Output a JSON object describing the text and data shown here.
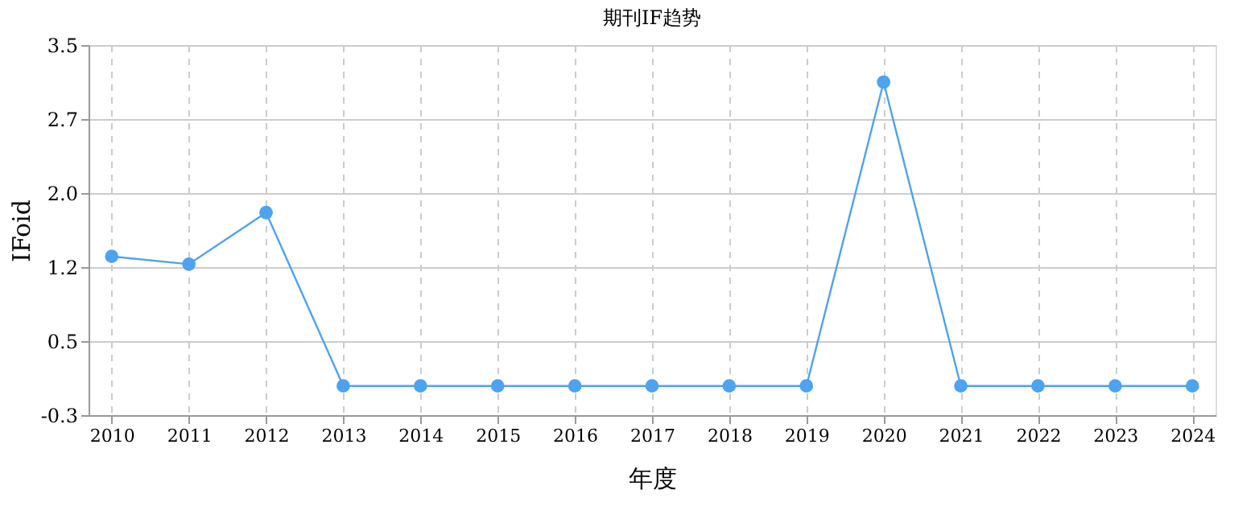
{
  "chart_data": {
    "type": "line",
    "title": "期刊IF趋势",
    "xlabel": "年度",
    "ylabel": "IFoid",
    "categories": [
      "2010",
      "2011",
      "2012",
      "2013",
      "2014",
      "2015",
      "2016",
      "2017",
      "2018",
      "2019",
      "2020",
      "2021",
      "2022",
      "2023",
      "2024"
    ],
    "series": [
      {
        "color": "#4da3f0",
        "values": [
          1.33,
          1.25,
          1.78,
          0,
          0,
          0,
          0,
          0,
          0,
          0,
          3.12,
          0,
          0,
          0,
          0
        ]
      }
    ],
    "ylim": [
      -0.3,
      3.5
    ],
    "yticks": [
      -0.3,
      {
        "value": 0.46,
        "label": "0.5"
      },
      {
        "value": 1.22,
        "label": "1.2"
      },
      {
        "value": 1.98,
        "label": "2.0"
      },
      {
        "value": 2.74,
        "label": "2.7"
      },
      3.5
    ],
    "grid": true,
    "marker": "circle",
    "line_style": "solid"
  }
}
